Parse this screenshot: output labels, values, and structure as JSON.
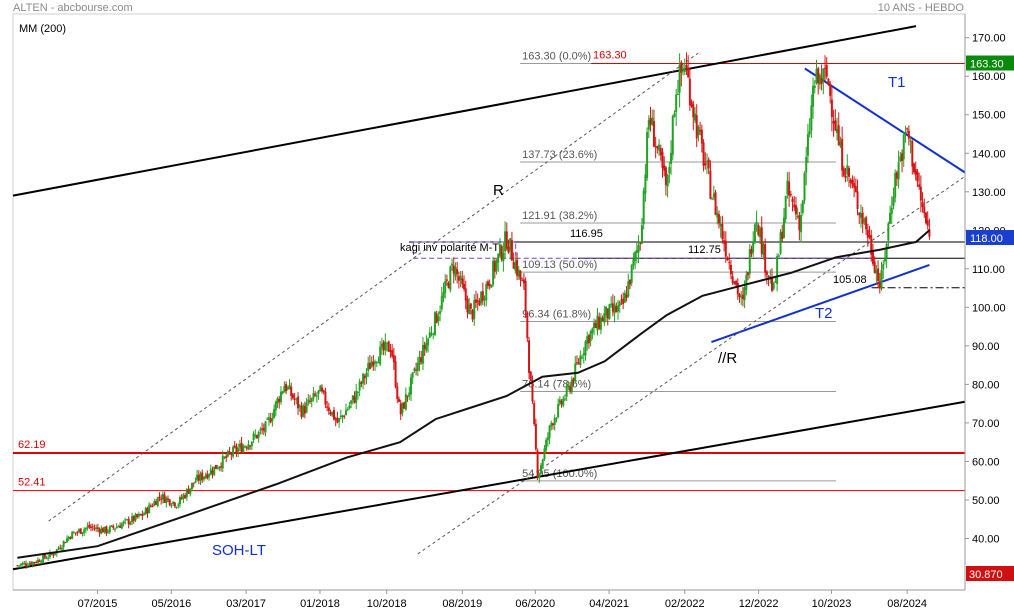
{
  "header": {
    "source": "ALTEN - abcbourse.com",
    "timeframe": "10 ANS - HEBDO",
    "indicator": "MM (200)"
  },
  "chart_data": {
    "type": "candlestick",
    "instrument": "ALTEN",
    "period": "10 ANS - HEBDO",
    "ylim": [
      30,
      172
    ],
    "y_ticks": [
      40,
      50,
      60,
      70,
      80,
      90,
      100,
      110,
      120,
      130,
      140,
      150,
      160,
      170
    ],
    "y_tick_labels": [
      "40.00",
      "50.00",
      "60.00",
      "70.00",
      "80.00",
      "90.00",
      "100.00",
      "110.00",
      "120.00",
      "130.00",
      "140.00",
      "150.00",
      "160.00",
      "170.00"
    ],
    "x_tick_labels": [
      "07/2015",
      "05/2016",
      "03/2017",
      "01/2018",
      "10/2018",
      "08/2019",
      "06/2020",
      "04/2021",
      "02/2022",
      "12/2022",
      "10/2023",
      "08/2024"
    ],
    "price_path": [
      [
        2014.6,
        33
      ],
      [
        2014.8,
        34
      ],
      [
        2015.0,
        36
      ],
      [
        2015.2,
        41
      ],
      [
        2015.4,
        43
      ],
      [
        2015.6,
        42
      ],
      [
        2015.8,
        44
      ],
      [
        2016.0,
        46
      ],
      [
        2016.2,
        51
      ],
      [
        2016.4,
        49
      ],
      [
        2016.6,
        55
      ],
      [
        2016.8,
        58
      ],
      [
        2017.0,
        62
      ],
      [
        2017.2,
        65
      ],
      [
        2017.4,
        69
      ],
      [
        2017.6,
        80
      ],
      [
        2017.8,
        73
      ],
      [
        2018.0,
        78
      ],
      [
        2018.2,
        70
      ],
      [
        2018.4,
        77
      ],
      [
        2018.6,
        87
      ],
      [
        2018.8,
        90
      ],
      [
        2018.9,
        72
      ],
      [
        2019.1,
        85
      ],
      [
        2019.3,
        97
      ],
      [
        2019.5,
        111
      ],
      [
        2019.7,
        98
      ],
      [
        2019.9,
        107
      ],
      [
        2020.1,
        118
      ],
      [
        2020.3,
        104
      ],
      [
        2020.35,
        85
      ],
      [
        2020.45,
        56
      ],
      [
        2020.6,
        70
      ],
      [
        2020.8,
        79
      ],
      [
        2021.0,
        92
      ],
      [
        2021.2,
        98
      ],
      [
        2021.4,
        100
      ],
      [
        2021.6,
        118
      ],
      [
        2021.7,
        150
      ],
      [
        2021.9,
        130
      ],
      [
        2022.0,
        157
      ],
      [
        2022.1,
        163.3
      ],
      [
        2022.25,
        145
      ],
      [
        2022.4,
        130
      ],
      [
        2022.6,
        112
      ],
      [
        2022.75,
        100
      ],
      [
        2022.9,
        125
      ],
      [
        2023.0,
        112
      ],
      [
        2023.1,
        104
      ],
      [
        2023.25,
        130
      ],
      [
        2023.4,
        122
      ],
      [
        2023.55,
        158
      ],
      [
        2023.7,
        160
      ],
      [
        2023.85,
        140
      ],
      [
        2024.0,
        130
      ],
      [
        2024.15,
        120
      ],
      [
        2024.3,
        105.08
      ],
      [
        2024.45,
        132
      ],
      [
        2024.6,
        146
      ],
      [
        2024.75,
        128
      ],
      [
        2024.85,
        118
      ]
    ],
    "moving_average_200": [
      [
        2014.6,
        35
      ],
      [
        2015.5,
        38
      ],
      [
        2016.5,
        46
      ],
      [
        2017.5,
        54
      ],
      [
        2018.3,
        61
      ],
      [
        2018.9,
        65
      ],
      [
        2019.3,
        71
      ],
      [
        2019.7,
        74
      ],
      [
        2020.1,
        77
      ],
      [
        2020.5,
        82
      ],
      [
        2020.9,
        83
      ],
      [
        2021.2,
        86
      ],
      [
        2021.6,
        93
      ],
      [
        2021.9,
        98
      ],
      [
        2022.3,
        103
      ],
      [
        2022.8,
        106
      ],
      [
        2023.3,
        109
      ],
      [
        2023.8,
        113
      ],
      [
        2024.3,
        115
      ],
      [
        2024.7,
        117
      ],
      [
        2024.85,
        120
      ]
    ],
    "last_price": 118.0,
    "last_price_label": "118.00",
    "scale_low_label": "30.870",
    "high_label": "163.30",
    "fibonacci": {
      "levels": [
        {
          "label": "163.30  (0.0%)",
          "value": 163.3
        },
        {
          "label": "137.73  (23.6%)",
          "value": 137.73
        },
        {
          "label": "121.91  (38.2%)",
          "value": 121.91
        },
        {
          "label": "109.13  (50.0%)",
          "value": 109.13
        },
        {
          "label": "96.34  (61.8%)",
          "value": 96.34
        },
        {
          "label": "78.14  (78.6%)",
          "value": 78.14
        },
        {
          "label": "54.95  (100.0%)",
          "value": 54.95
        }
      ],
      "x_start": 2020.25,
      "x_end": 2023.8
    },
    "horizontal_levels": [
      {
        "label": "163.30",
        "value": 163.3,
        "color": "#e00000",
        "x_start": 2021.05,
        "x_end": 2025.25
      },
      {
        "label": "62.19",
        "value": 62.19,
        "color": "#e00000",
        "x_start": 2014.55,
        "x_end": 2025.25
      },
      {
        "label": "52.41",
        "value": 52.41,
        "color": "#e00000",
        "x_start": 2014.55,
        "x_end": 2025.25
      },
      {
        "label": "116.95",
        "value": 116.95,
        "color": "#000000",
        "x_start": 2019.0,
        "x_end": 2025.25
      },
      {
        "label": "112.75",
        "value": 112.75,
        "color": "#000000",
        "x_start": 2020.9,
        "x_end": 2025.25
      },
      {
        "label": "105.08",
        "value": 105.08,
        "color": "#000000",
        "x_start": 2024.2,
        "x_end": 2025.25
      }
    ],
    "trendlines": [
      {
        "label": "SOH-LT",
        "color": "#000000",
        "points": [
          [
            2014.55,
            32
          ],
          [
            2025.25,
            75.5
          ]
        ]
      },
      {
        "label": "",
        "color": "#000000",
        "points": [
          [
            2014.55,
            129
          ],
          [
            2024.7,
            173
          ]
        ]
      },
      {
        "label": "T1",
        "color": "#1030d0",
        "points": [
          [
            2023.45,
            162
          ],
          [
            2025.25,
            135
          ]
        ]
      },
      {
        "label": "T2",
        "color": "#1030d0",
        "points": [
          [
            2022.4,
            91
          ],
          [
            2024.85,
            111
          ]
        ]
      },
      {
        "label": "R",
        "color": "#555555",
        "points": [
          [
            2014.95,
            44.5
          ],
          [
            2022.25,
            166
          ]
        ]
      },
      {
        "label": "//R",
        "color": "#555555",
        "points": [
          [
            2019.1,
            36
          ],
          [
            2025.25,
            134
          ]
        ]
      }
    ],
    "kagi_box": {
      "label": "kagi inv polarité M-T",
      "high": 116.95,
      "low": 112.75,
      "x_start": 2019.05,
      "x_end": 2020.2
    }
  }
}
